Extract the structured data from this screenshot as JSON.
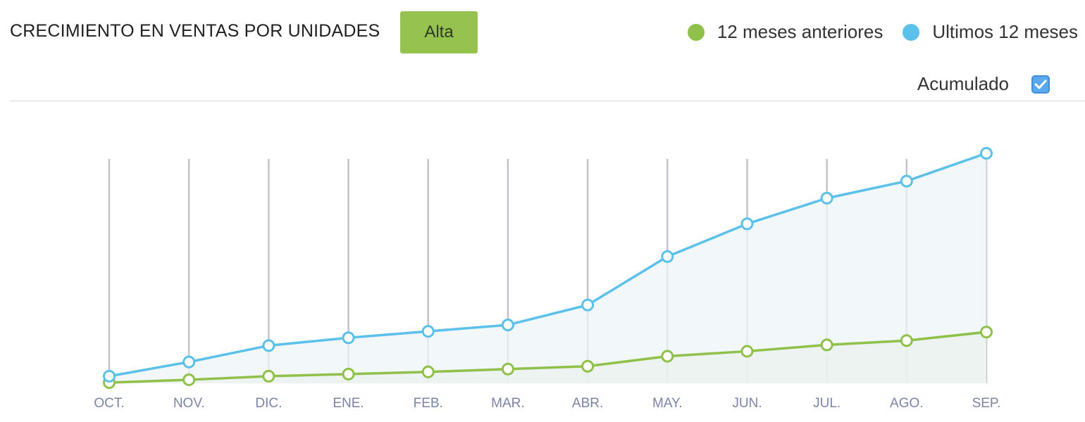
{
  "header": {
    "title": "CRECIMIENTO EN VENTAS POR UNIDADES",
    "badge": "Alta"
  },
  "legend": [
    {
      "label": "12 meses anteriores",
      "color": "#8fc04a"
    },
    {
      "label": "Ultimos 12 meses",
      "color": "#5bc0ea"
    }
  ],
  "toggle": {
    "label": "Acumulado",
    "checked": true,
    "icon": "check-icon"
  },
  "chart_data": {
    "type": "line",
    "categories": [
      "OCT.",
      "NOV.",
      "DIC.",
      "ENE.",
      "FEB.",
      "MAR.",
      "ABR.",
      "MAY.",
      "JUN.",
      "JUL.",
      "AGO.",
      "SEP."
    ],
    "series": [
      {
        "name": "12 meses anteriores",
        "color": "#8fc04a",
        "values": [
          1,
          5,
          10,
          13,
          16,
          20,
          24,
          38,
          45,
          54,
          60,
          72
        ]
      },
      {
        "name": "Ultimos 12 meses",
        "color": "#5bc0ea",
        "values": [
          10,
          30,
          53,
          64,
          73,
          82,
          110,
          178,
          224,
          260,
          284,
          323
        ]
      }
    ],
    "ylim": [
      0,
      400
    ],
    "area_fill": true,
    "grid": "vertical",
    "legend_position": "top-right"
  }
}
